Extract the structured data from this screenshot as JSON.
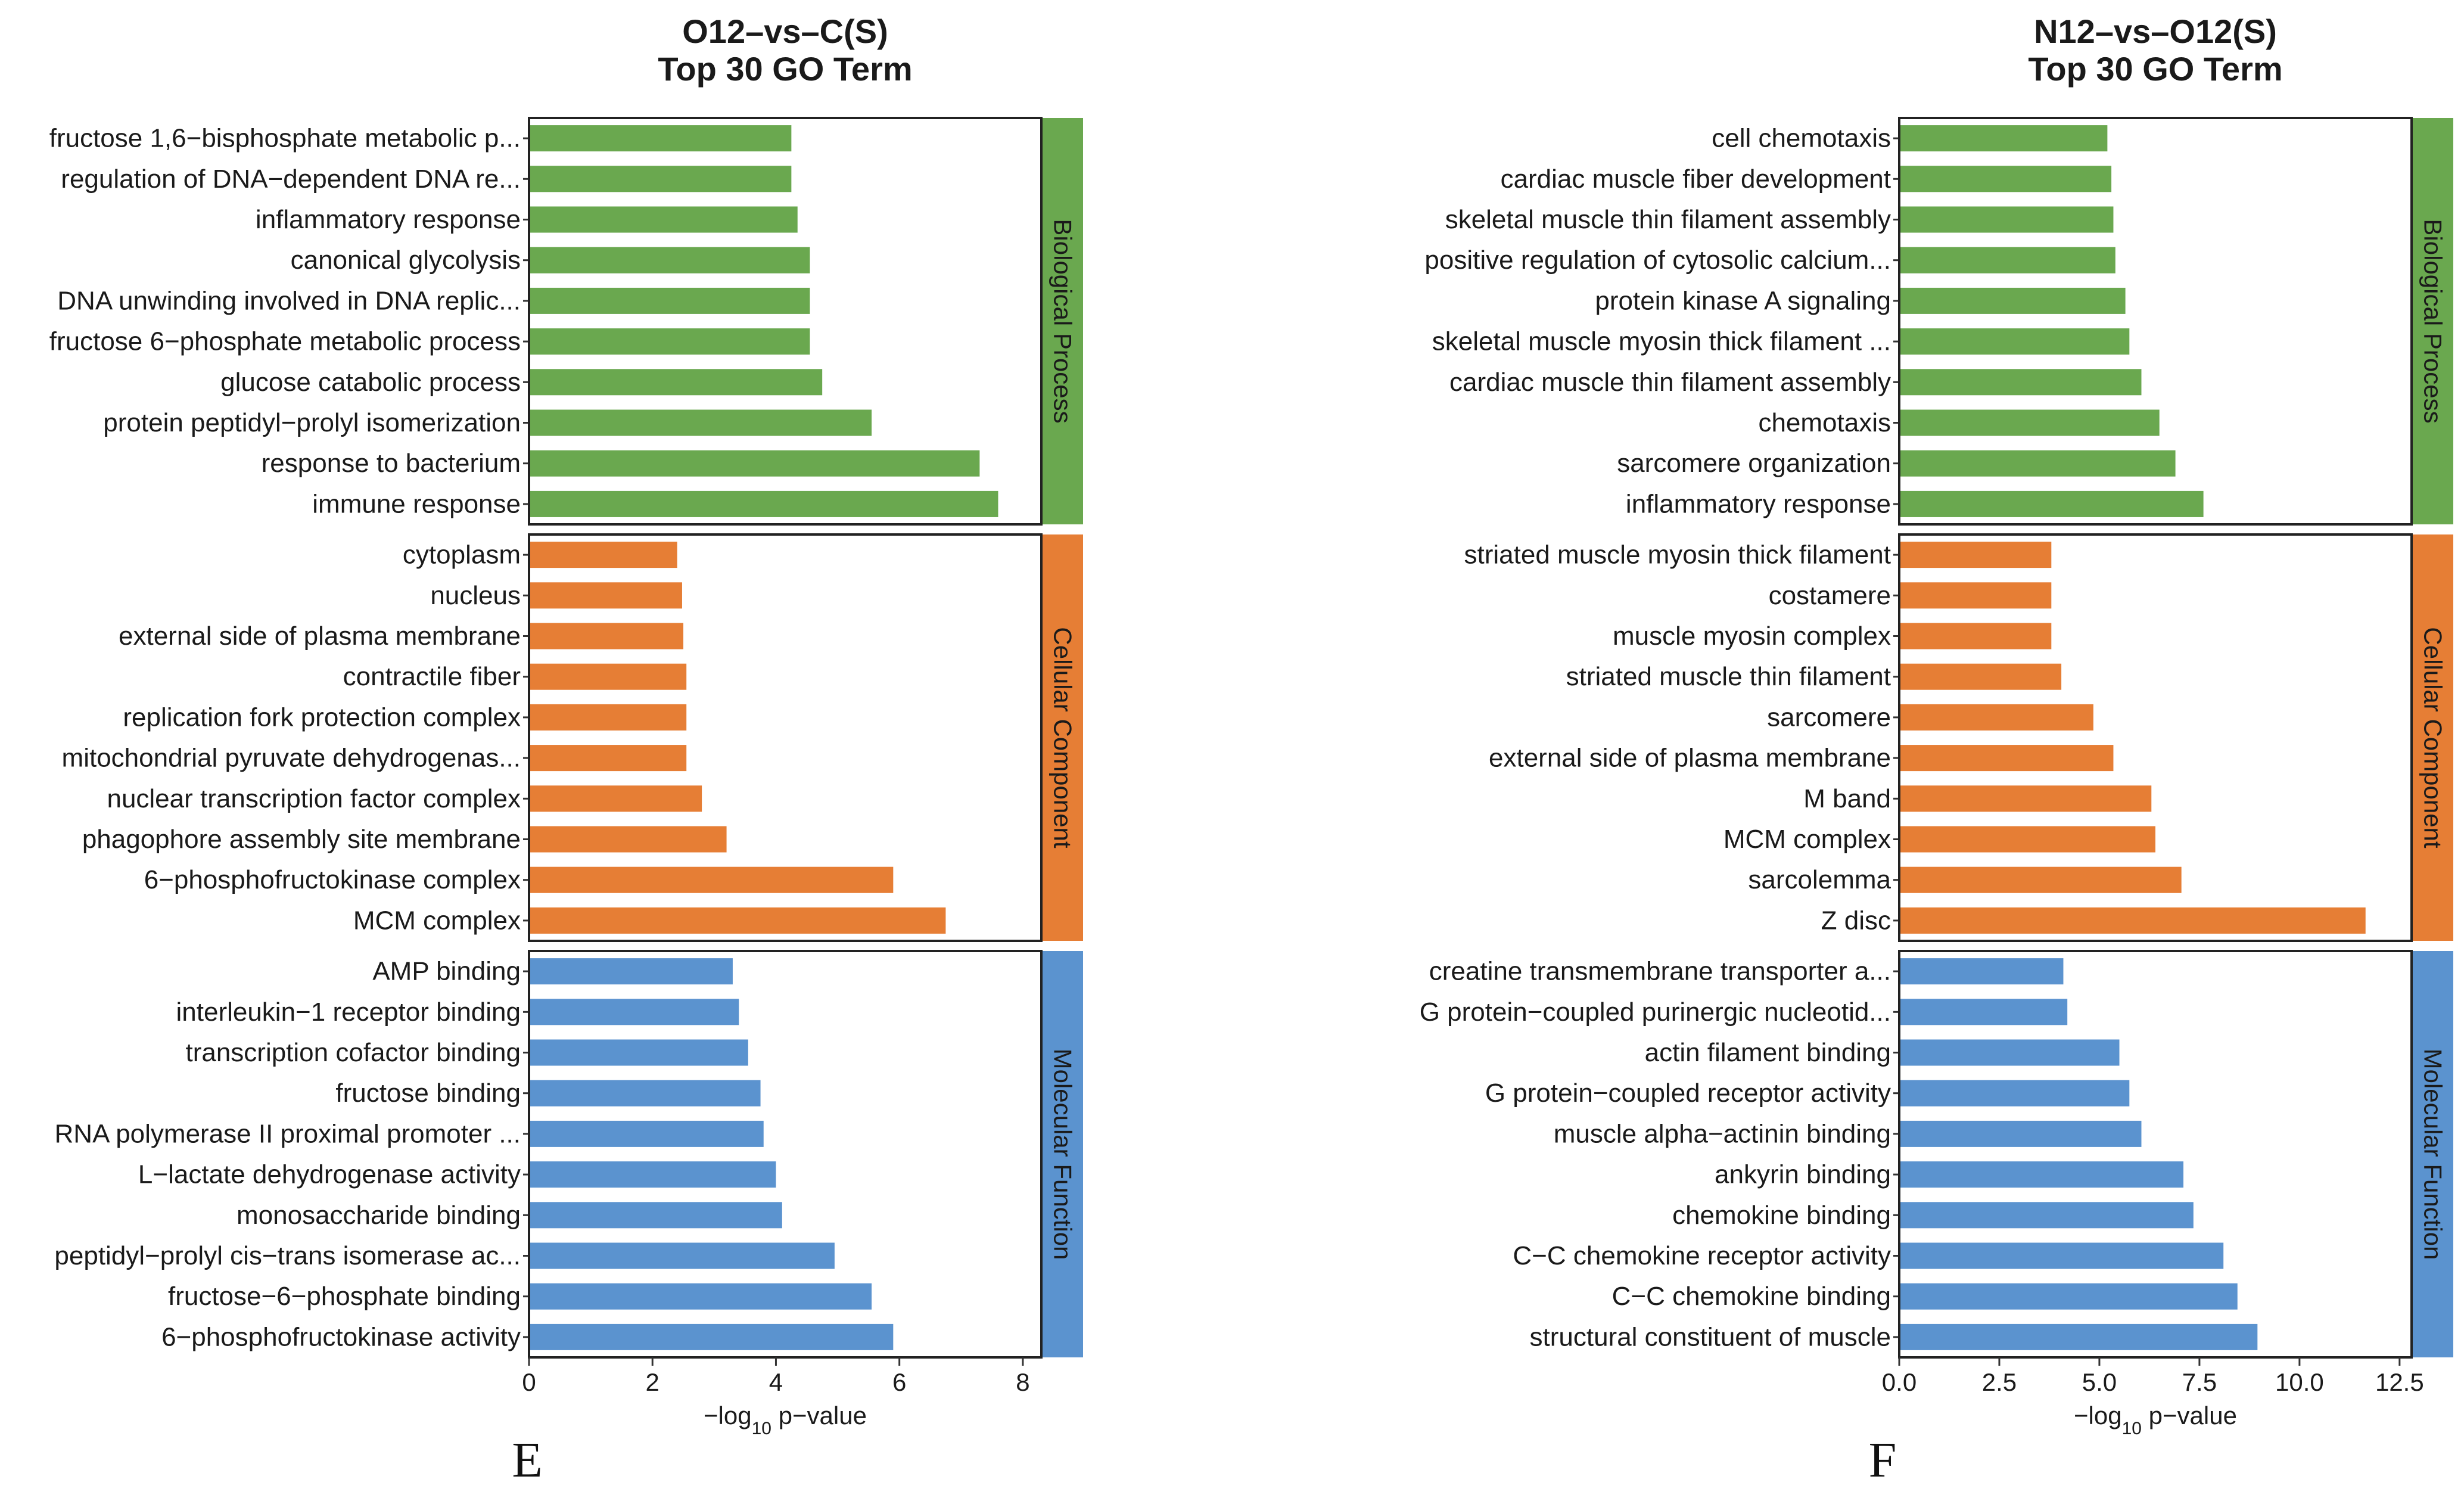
{
  "figure": {
    "panel_letters": [
      "E",
      "F"
    ]
  },
  "chart_data": [
    {
      "type": "bar",
      "orientation": "horizontal",
      "title": "O12–vs–C(S)",
      "subtitle": "Top 30 GO Term",
      "xlabel_prefix": "−log",
      "xlabel_subscript": "10",
      "xlabel_suffix": " p−value",
      "xlim": [
        0,
        8.3
      ],
      "xticks": [
        0,
        2,
        4,
        6,
        8
      ],
      "xtick_labels": [
        "0",
        "2",
        "4",
        "6",
        "8"
      ],
      "panel_letter": "E",
      "groups": [
        {
          "name": "Biological Process",
          "color": "#6aa84f",
          "categories": [
            "fructose 1,6−bisphosphate metabolic p...",
            "regulation of DNA−dependent DNA re...",
            "inflammatory response",
            "canonical glycolysis",
            "DNA unwinding involved in DNA replic...",
            "fructose 6−phosphate metabolic process",
            "glucose catabolic process",
            "protein peptidyl−prolyl isomerization",
            "response to bacterium",
            "immune response"
          ],
          "values": [
            4.25,
            4.25,
            4.35,
            4.55,
            4.55,
            4.55,
            4.75,
            5.55,
            7.3,
            7.6
          ]
        },
        {
          "name": "Cellular Component",
          "color": "#e67e35",
          "categories": [
            "cytoplasm",
            "nucleus",
            "external side of plasma membrane",
            "contractile fiber",
            "replication fork protection complex",
            "mitochondrial pyruvate dehydrogenas...",
            "nuclear transcription factor complex",
            "phagophore assembly site membrane",
            "6−phosphofructokinase complex",
            "MCM complex"
          ],
          "values": [
            2.4,
            2.48,
            2.5,
            2.55,
            2.55,
            2.55,
            2.8,
            3.2,
            5.9,
            6.75
          ]
        },
        {
          "name": "Molecular Function",
          "color": "#5b93cf",
          "categories": [
            "AMP binding",
            "interleukin−1 receptor binding",
            "transcription cofactor binding",
            "fructose binding",
            "RNA polymerase II proximal promoter ...",
            "L−lactate dehydrogenase activity",
            "monosaccharide binding",
            "peptidyl−prolyl cis−trans isomerase ac...",
            "fructose−6−phosphate binding",
            "6−phosphofructokinase activity"
          ],
          "values": [
            3.3,
            3.4,
            3.55,
            3.75,
            3.8,
            4.0,
            4.1,
            4.95,
            5.55,
            5.9
          ]
        }
      ]
    },
    {
      "type": "bar",
      "orientation": "horizontal",
      "title": "N12–vs–O12(S)",
      "subtitle": "Top 30 GO Term",
      "xlabel_prefix": "−log",
      "xlabel_subscript": "10",
      "xlabel_suffix": " p−value",
      "xlim": [
        0,
        12.8
      ],
      "xticks": [
        0,
        2.5,
        5,
        7.5,
        10,
        12.5
      ],
      "xtick_labels": [
        "0.0",
        "2.5",
        "5.0",
        "7.5",
        "10.0",
        "12.5"
      ],
      "panel_letter": "F",
      "groups": [
        {
          "name": "Biological Process",
          "color": "#6aa84f",
          "categories": [
            "cell chemotaxis",
            "cardiac muscle fiber development",
            "skeletal muscle thin filament assembly",
            "positive regulation of cytosolic calcium...",
            "protein kinase A signaling",
            "skeletal muscle myosin thick filament ...",
            "cardiac muscle thin filament assembly",
            "chemotaxis",
            "sarcomere organization",
            "inflammatory response"
          ],
          "values": [
            5.2,
            5.3,
            5.35,
            5.4,
            5.65,
            5.75,
            6.05,
            6.5,
            6.9,
            7.6
          ]
        },
        {
          "name": "Cellular Component",
          "color": "#e67e35",
          "categories": [
            "striated muscle myosin thick filament",
            "costamere",
            "muscle myosin complex",
            "striated muscle thin filament",
            "sarcomere",
            "external side of plasma membrane",
            "M band",
            "MCM complex",
            "sarcolemma",
            "Z disc"
          ],
          "values": [
            3.8,
            3.8,
            3.8,
            4.05,
            4.85,
            5.35,
            6.3,
            6.4,
            7.05,
            11.65
          ]
        },
        {
          "name": "Molecular Function",
          "color": "#5b93cf",
          "categories": [
            "creatine transmembrane transporter a...",
            "G protein−coupled purinergic nucleotid...",
            "actin filament binding",
            "G protein−coupled receptor activity",
            "muscle alpha−actinin binding",
            "ankyrin binding",
            "chemokine binding",
            "C−C chemokine receptor activity",
            "C−C chemokine binding",
            "structural constituent of muscle"
          ],
          "values": [
            4.1,
            4.2,
            5.5,
            5.75,
            6.05,
            7.1,
            7.35,
            8.1,
            8.45,
            8.95
          ]
        }
      ]
    }
  ]
}
